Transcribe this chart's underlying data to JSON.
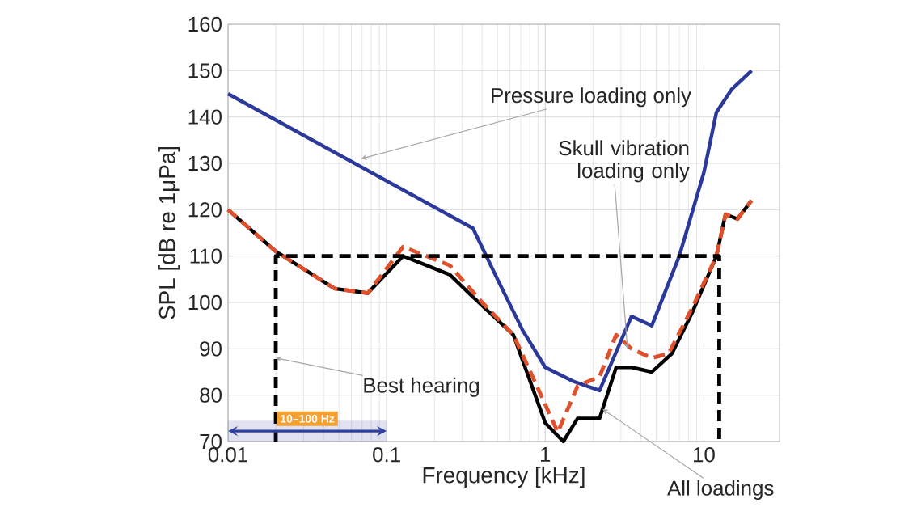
{
  "chart_data": {
    "type": "line",
    "xlabel": "Frequency [kHz]",
    "ylabel": "SPL [dB re 1μPa]",
    "log": "x",
    "xlim": [
      0.01,
      30
    ],
    "ylim": [
      70,
      160
    ],
    "xticks": [
      0.01,
      0.1,
      1,
      10
    ],
    "yticks": [
      70,
      80,
      90,
      100,
      110,
      120,
      130,
      140,
      150,
      160
    ],
    "grid": true,
    "series": [
      {
        "color": "#2b3a9a",
        "line_style": "solid",
        "x": [
          0.01,
          0.35,
          0.5,
          0.72,
          1,
          1.5,
          2.2,
          3.5,
          4.7,
          7,
          10,
          12,
          15,
          20
        ],
        "values": [
          145,
          116,
          105,
          94,
          86,
          83,
          81,
          97,
          95,
          110,
          128,
          141,
          146,
          150
        ]
      },
      {
        "color": "#000000",
        "line_style": "solid",
        "x": [
          0.01,
          0.02,
          0.047,
          0.076,
          0.127,
          0.25,
          0.33,
          0.63,
          1,
          1.3,
          1.6,
          2.2,
          2.8,
          3.5,
          4.7,
          6.3,
          8.5,
          12,
          13.7,
          16.3,
          20
        ],
        "values": [
          120,
          111,
          103,
          102,
          110,
          106,
          102,
          93,
          74,
          70,
          75,
          75,
          86,
          86,
          85,
          89,
          98,
          110,
          119,
          118,
          122
        ]
      },
      {
        "color": "#e0502a",
        "line_style": "dashed",
        "x": [
          0.01,
          0.02,
          0.047,
          0.076,
          0.127,
          0.25,
          0.4,
          0.63,
          1,
          1.2,
          1.6,
          2.2,
          2.8,
          3.5,
          4.7,
          6,
          8.5,
          12,
          13.7,
          16.3,
          20
        ],
        "values": [
          120,
          111,
          103,
          102,
          112,
          108,
          100,
          93,
          78,
          72,
          82,
          84,
          93,
          90,
          88,
          89,
          99,
          110,
          119,
          118,
          122
        ]
      },
      {
        "color": "#000000",
        "line_style": "dashed",
        "x": [
          0.02,
          0.02,
          12.5,
          12.5
        ],
        "values": [
          70,
          110,
          110,
          70
        ]
      }
    ],
    "bands": [
      {
        "axis": "x",
        "from": 0.01,
        "to": 0.1,
        "label": "10–100 Hz",
        "color": "#2e3f9e"
      }
    ],
    "annotations": [
      {
        "text": "Pressure loading only",
        "x": 0.069,
        "y": 131
      },
      {
        "text": "Skull vibration loading only",
        "x": 3.3,
        "y": 90
      },
      {
        "text": "All loadings",
        "x": 2.3,
        "y": 77
      },
      {
        "text": "Best hearing",
        "x": 0.02,
        "y": 88
      }
    ]
  }
}
